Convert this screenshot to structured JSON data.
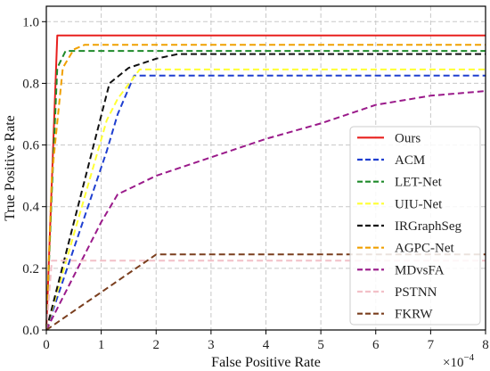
{
  "chart_data": {
    "type": "line",
    "xlabel": "False Positive Rate",
    "ylabel": "True Positive Rate",
    "x_multiplier_label": "×10",
    "x_multiplier_exponent": "−4",
    "xlim": [
      0,
      8
    ],
    "ylim": [
      0,
      1.05
    ],
    "xticks": [
      0,
      1,
      2,
      3,
      4,
      5,
      6,
      7,
      8
    ],
    "yticks": [
      0.0,
      0.2,
      0.4,
      0.6,
      0.8,
      1.0
    ],
    "ytick_labels": [
      "0.0",
      "0.2",
      "0.4",
      "0.6",
      "0.8",
      "1.0"
    ],
    "grid": true,
    "legend_position": "lower-right",
    "series": [
      {
        "name": "Ours",
        "color": "#e8201e",
        "dash": "solid",
        "x": [
          0,
          0.2,
          8
        ],
        "y": [
          0.0,
          0.955,
          0.955
        ]
      },
      {
        "name": "ACM",
        "color": "#1f3fd0",
        "dash": "dashed",
        "x": [
          0,
          1.1,
          1.3,
          1.6,
          8
        ],
        "y": [
          0.0,
          0.58,
          0.7,
          0.825,
          0.825
        ]
      },
      {
        "name": "LET-Net",
        "color": "#1e8a2a",
        "dash": "dashed",
        "x": [
          0,
          0.1,
          0.2,
          0.35,
          8
        ],
        "y": [
          0.0,
          0.45,
          0.85,
          0.905,
          0.905
        ]
      },
      {
        "name": "UIU-Net",
        "color": "#ffff33",
        "dash": "dashed",
        "x": [
          0,
          1.1,
          1.3,
          1.7,
          8
        ],
        "y": [
          0.0,
          0.68,
          0.75,
          0.845,
          0.845
        ]
      },
      {
        "name": "IRGraphSeg",
        "color": "#111111",
        "dash": "dashed",
        "x": [
          0,
          1.15,
          1.5,
          2.0,
          2.4,
          8
        ],
        "y": [
          0.0,
          0.8,
          0.85,
          0.88,
          0.895,
          0.895
        ]
      },
      {
        "name": "AGPC-Net",
        "color": "#f0a000",
        "dash": "dashed",
        "x": [
          0,
          0.1,
          0.3,
          0.5,
          0.7,
          8
        ],
        "y": [
          0.0,
          0.5,
          0.85,
          0.91,
          0.925,
          0.925
        ]
      },
      {
        "name": "MDvsFA",
        "color": "#9a1a8a",
        "dash": "dashed",
        "x": [
          0,
          1.0,
          1.3,
          2.0,
          3.0,
          4.0,
          5.0,
          6.0,
          7.0,
          8.0
        ],
        "y": [
          0.0,
          0.35,
          0.44,
          0.5,
          0.56,
          0.62,
          0.67,
          0.73,
          0.76,
          0.775
        ]
      },
      {
        "name": "PSTNN",
        "color": "#f2c0c8",
        "dash": "dashed",
        "x": [
          0,
          0.1,
          8
        ],
        "y": [
          0.0,
          0.225,
          0.225
        ]
      },
      {
        "name": "FKRW",
        "color": "#7a3e1e",
        "dash": "dashed",
        "x": [
          0,
          2.0,
          8
        ],
        "y": [
          0.0,
          0.245,
          0.245
        ]
      }
    ]
  }
}
